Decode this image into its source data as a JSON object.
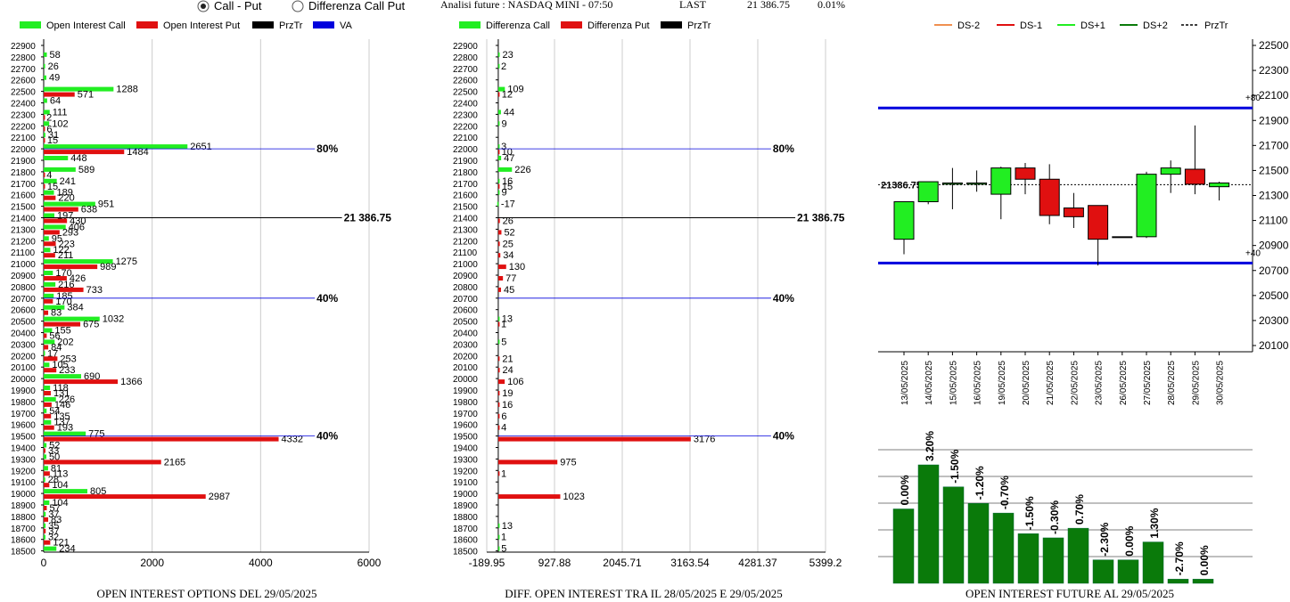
{
  "header": {
    "radio_options": [
      {
        "label": "Call - Put",
        "selected": true
      },
      {
        "label": "Differenza Call Put",
        "selected": false
      }
    ],
    "info_label": "Analisi future : NASDAQ MINI - 07:50",
    "last_label": "LAST",
    "last_value": "21 386.75",
    "last_change": "0.01%"
  },
  "colors": {
    "call": "#22ee22",
    "put": "#e01010",
    "price": "#000000",
    "va": "#0000dd",
    "dark_green": "#0a7a0a"
  },
  "chart_data": [
    {
      "type": "bar",
      "orientation": "horizontal",
      "title": "OPEN INTEREST OPTIONS DEL 29/05/2025",
      "legend": [
        "Open Interest Call",
        "Open Interest Put",
        "PrzTr",
        "VA"
      ],
      "categories": [
        "22900",
        "22800",
        "22700",
        "22600",
        "22500",
        "22400",
        "22300",
        "22200",
        "22100",
        "22000",
        "21900",
        "21800",
        "21700",
        "21600",
        "21500",
        "21400",
        "21300",
        "21200",
        "21100",
        "21000",
        "20900",
        "20800",
        "20700",
        "20600",
        "20500",
        "20400",
        "20300",
        "20200",
        "20100",
        "20000",
        "19900",
        "19800",
        "19700",
        "19600",
        "19500",
        "19400",
        "19300",
        "19200",
        "19100",
        "19000",
        "18900",
        "18800",
        "18700",
        "18600",
        "18500"
      ],
      "series": [
        {
          "name": "Open Interest Call",
          "values": [
            0,
            58,
            26,
            49,
            1288,
            64,
            111,
            102,
            31,
            2651,
            448,
            589,
            241,
            189,
            951,
            197,
            406,
            95,
            122,
            1275,
            170,
            216,
            185,
            384,
            1032,
            155,
            202,
            17,
            105,
            690,
            118,
            226,
            54,
            137,
            775,
            52,
            50,
            81,
            28,
            805,
            104,
            37,
            35,
            32,
            234
          ]
        },
        {
          "name": "Open Interest Put",
          "values": [
            0,
            0,
            0,
            0,
            571,
            0,
            2,
            6,
            15,
            1484,
            0,
            4,
            15,
            220,
            638,
            430,
            293,
            223,
            211,
            989,
            426,
            733,
            170,
            83,
            675,
            56,
            84,
            253,
            233,
            1366,
            131,
            146,
            135,
            193,
            4332,
            33,
            2165,
            113,
            104,
            2987,
            57,
            83,
            37,
            121,
            0
          ]
        }
      ],
      "xlim": [
        0,
        6000
      ],
      "xticks": [
        "0",
        "2000",
        "4000",
        "6000"
      ],
      "markers": [
        {
          "strike": "22000",
          "label": "80%",
          "value": 5000,
          "kind": "va"
        },
        {
          "strike": "21400",
          "label": "21 386.75",
          "value": 5500,
          "kind": "price"
        },
        {
          "strike": "20700",
          "label": "40%",
          "value": 5000,
          "kind": "va"
        },
        {
          "strike": "19500",
          "label": "40%",
          "value": 5000,
          "kind": "va"
        }
      ]
    },
    {
      "type": "bar",
      "orientation": "horizontal",
      "title": "DIFF. OPEN INTEREST TRA IL 28/05/2025 E 29/05/2025",
      "legend": [
        "Differenza Call",
        "Differenza Put",
        "PrzTr"
      ],
      "categories": [
        "22900",
        "22800",
        "22700",
        "22600",
        "22500",
        "22400",
        "22300",
        "22200",
        "22100",
        "22000",
        "21900",
        "21800",
        "21700",
        "21600",
        "21500",
        "21400",
        "21300",
        "21200",
        "21100",
        "21000",
        "20900",
        "20800",
        "20700",
        "20600",
        "20500",
        "20400",
        "20300",
        "20200",
        "20100",
        "20000",
        "19900",
        "19800",
        "19700",
        "19600",
        "19500",
        "19400",
        "19300",
        "19200",
        "19100",
        "19000",
        "18900",
        "18800",
        "18700",
        "18600",
        "18500"
      ],
      "series": [
        {
          "name": "Differenza Call",
          "values": [
            0,
            23,
            2,
            0,
            109,
            0,
            44,
            9,
            0,
            3,
            47,
            226,
            16,
            9,
            -17,
            0,
            0,
            0,
            0,
            0,
            0,
            0,
            0,
            0,
            13,
            0,
            5,
            0,
            0,
            0,
            0,
            0,
            0,
            0,
            0,
            0,
            0,
            0,
            0,
            0,
            0,
            0,
            13,
            1,
            5
          ]
        },
        {
          "name": "Differenza Put",
          "values": [
            0,
            0,
            0,
            0,
            12,
            0,
            0,
            0,
            0,
            10,
            0,
            0,
            15,
            0,
            0,
            26,
            52,
            25,
            34,
            130,
            77,
            45,
            0,
            0,
            1,
            0,
            0,
            21,
            24,
            106,
            19,
            16,
            6,
            4,
            3176,
            0,
            975,
            1,
            0,
            1023,
            0,
            0,
            0,
            0,
            0
          ]
        }
      ],
      "xlim": [
        -189.95,
        5399.2
      ],
      "xticks": [
        "-189.95",
        "927.88",
        "2045.71",
        "3163.54",
        "4281.37",
        "5399.2"
      ],
      "markers": [
        {
          "strike": "22000",
          "label": "80%",
          "value": 4500,
          "kind": "va"
        },
        {
          "strike": "21400",
          "label": "21 386.75",
          "value": 4900,
          "kind": "price"
        },
        {
          "strike": "20700",
          "label": "40%",
          "value": 4500,
          "kind": "va"
        },
        {
          "strike": "19500",
          "label": "40%",
          "value": 4500,
          "kind": "va"
        }
      ]
    },
    {
      "type": "candlestick",
      "legend": [
        "DS-2",
        "DS-1",
        "DS+1",
        "DS+2",
        "PrzTr"
      ],
      "ylim": [
        20100,
        22500
      ],
      "yticks": [
        "22500",
        "22300",
        "22100",
        "21900",
        "21700",
        "21500",
        "21300",
        "21100",
        "20900",
        "20700",
        "20500",
        "20300",
        "20100"
      ],
      "dates": [
        "13/05/2025",
        "14/05/2025",
        "15/05/2025",
        "16/05/2025",
        "19/05/2025",
        "20/05/2025",
        "21/05/2025",
        "22/05/2025",
        "23/05/2025",
        "26/05/2025",
        "27/05/2025",
        "28/05/2025",
        "29/05/2025",
        "30/05/2025"
      ],
      "candles": [
        {
          "open": 20950,
          "close": 21250,
          "high": 21250,
          "low": 20830
        },
        {
          "open": 21250,
          "close": 21410,
          "high": 21410,
          "low": 21230
        },
        {
          "open": 21390,
          "close": 21400,
          "high": 21520,
          "low": 21190
        },
        {
          "open": 21390,
          "close": 21400,
          "high": 21500,
          "low": 21330
        },
        {
          "open": 21310,
          "close": 21520,
          "high": 21530,
          "low": 21110
        },
        {
          "open": 21520,
          "close": 21430,
          "high": 21560,
          "low": 21310
        },
        {
          "open": 21430,
          "close": 21140,
          "high": 21550,
          "low": 21070
        },
        {
          "open": 21200,
          "close": 21130,
          "high": 21320,
          "low": 21040
        },
        {
          "open": 21220,
          "close": 20950,
          "high": 21220,
          "low": 20740
        },
        {
          "open": 20970,
          "close": 20970,
          "high": 20970,
          "low": 20970
        },
        {
          "open": 20970,
          "close": 21470,
          "high": 21490,
          "low": 20960
        },
        {
          "open": 21470,
          "close": 21520,
          "high": 21580,
          "low": 21320
        },
        {
          "open": 21510,
          "close": 21390,
          "high": 21860,
          "low": 21310
        },
        {
          "open": 21370,
          "close": 21400,
          "high": 21410,
          "low": 21260
        }
      ],
      "price_line": 21386.75,
      "price_label": "21386.75",
      "va_lines": [
        {
          "value": 22000,
          "label": "+80"
        },
        {
          "value": 20760,
          "label": "+40"
        }
      ]
    },
    {
      "type": "bar",
      "title": "OPEN INTEREST FUTURE AL 29/05/2025",
      "categories": [
        "13/05/2025",
        "14/05/2025",
        "15/05/2025",
        "16/05/2025",
        "19/05/2025",
        "20/05/2025",
        "21/05/2025",
        "22/05/2025",
        "23/05/2025",
        "26/05/2025",
        "27/05/2025",
        "28/05/2025",
        "29/05/2025"
      ],
      "values": [
        100,
        103.2,
        101.6,
        100.4,
        99.7,
        98.2,
        97.9,
        98.6,
        96.3,
        96.3,
        97.6,
        94.9,
        94.9
      ],
      "labels": [
        "0.00%",
        "3.20%",
        "-1.50%",
        "-1.20%",
        "-0.70%",
        "-1.50%",
        "-0.30%",
        "0.70%",
        "-2.30%",
        "0.00%",
        "1.30%",
        "-2.70%",
        "0.00%"
      ],
      "ylim": [
        94.6,
        104.3
      ]
    }
  ]
}
